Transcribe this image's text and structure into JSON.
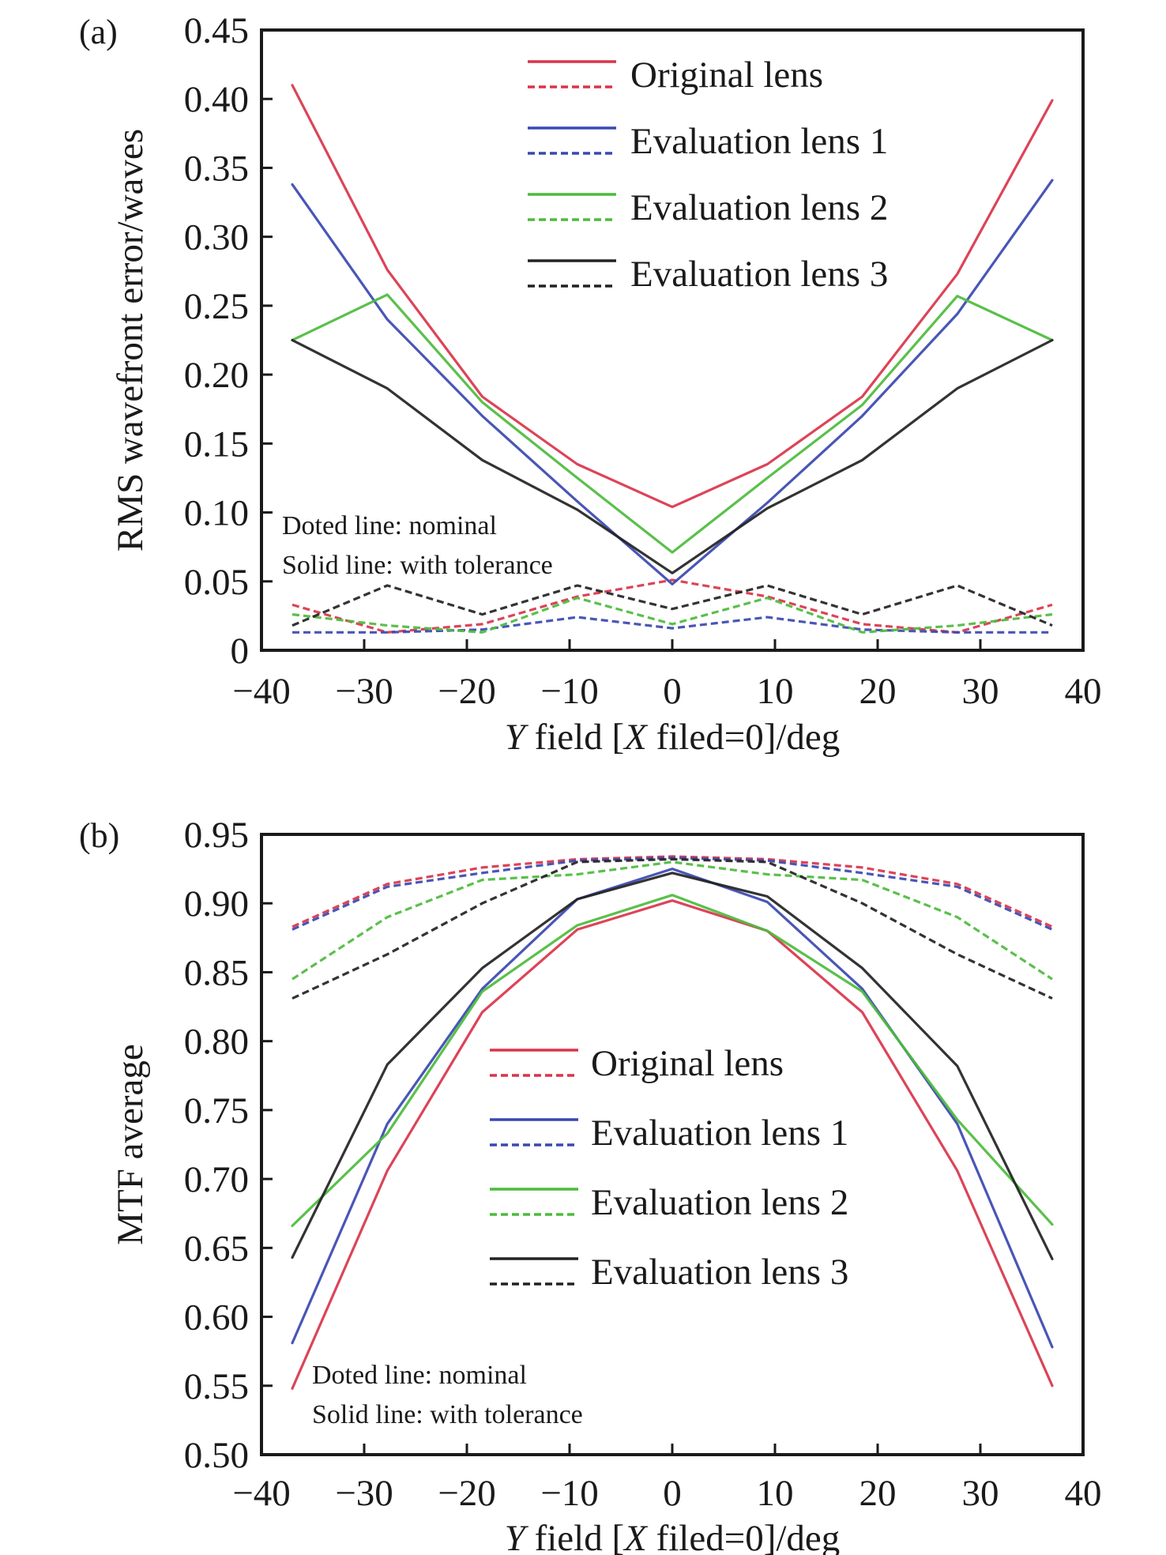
{
  "chart_data": [
    {
      "type": "line",
      "panel_label": "(a)",
      "xlabel_parts": [
        "Y",
        " field [",
        "X",
        " filed=0]/deg"
      ],
      "ylabel": "RMS wavefront error/waves",
      "xlim": [
        -40,
        40
      ],
      "ylim": [
        0,
        0.45
      ],
      "xticks": [
        -40,
        -30,
        -20,
        -10,
        0,
        10,
        20,
        30,
        40
      ],
      "xtick_labels": [
        "−40",
        "−30",
        "−20",
        "−10",
        "0",
        "10",
        "20",
        "30",
        "40"
      ],
      "yticks": [
        0,
        0.05,
        0.1,
        0.15,
        0.2,
        0.25,
        0.3,
        0.35,
        0.4,
        0.45
      ],
      "ytick_labels": [
        "0",
        "0.05",
        "0.10",
        "0.15",
        "0.20",
        "0.25",
        "0.30",
        "0.35",
        "0.40",
        "0.45"
      ],
      "grid": false,
      "legend_position": "top-center",
      "notes": [
        "Doted line: nominal",
        "Solid line: with tolerance"
      ],
      "x": [
        -37,
        -27.75,
        -18.5,
        -9.25,
        0,
        9.25,
        18.5,
        27.75,
        37
      ],
      "series": [
        {
          "name": "Original lens",
          "style": "solid",
          "color": "#d9344a",
          "values": [
            0.41,
            0.276,
            0.184,
            0.135,
            0.104,
            0.135,
            0.184,
            0.273,
            0.399
          ]
        },
        {
          "name": "Original lens",
          "style": "dashed",
          "color": "#d9344a",
          "values": [
            0.033,
            0.013,
            0.019,
            0.039,
            0.051,
            0.039,
            0.019,
            0.013,
            0.033
          ]
        },
        {
          "name": "Evaluation lens 1",
          "style": "solid",
          "color": "#3a48b0",
          "values": [
            0.338,
            0.24,
            0.17,
            0.108,
            0.048,
            0.107,
            0.17,
            0.244,
            0.341
          ]
        },
        {
          "name": "Evaluation lens 1",
          "style": "dashed",
          "color": "#3a48b0",
          "values": [
            0.013,
            0.013,
            0.015,
            0.024,
            0.016,
            0.024,
            0.015,
            0.013,
            0.013
          ]
        },
        {
          "name": "Evaluation lens 2",
          "style": "solid",
          "color": "#4cbb3c",
          "values": [
            0.225,
            0.258,
            0.18,
            0.125,
            0.071,
            0.125,
            0.178,
            0.257,
            0.225
          ]
        },
        {
          "name": "Evaluation lens 2",
          "style": "dashed",
          "color": "#4cbb3c",
          "values": [
            0.026,
            0.018,
            0.013,
            0.038,
            0.019,
            0.038,
            0.013,
            0.018,
            0.026
          ]
        },
        {
          "name": "Evaluation lens 3",
          "style": "solid",
          "color": "#222222",
          "values": [
            0.225,
            0.19,
            0.138,
            0.102,
            0.056,
            0.103,
            0.138,
            0.19,
            0.225
          ]
        },
        {
          "name": "Evaluation lens 3",
          "style": "dashed",
          "color": "#222222",
          "values": [
            0.018,
            0.047,
            0.026,
            0.047,
            0.03,
            0.047,
            0.026,
            0.047,
            0.018
          ]
        }
      ],
      "legend": [
        "Original lens",
        "Evaluation lens 1",
        "Evaluation lens 2",
        "Evaluation lens 3"
      ]
    },
    {
      "type": "line",
      "panel_label": "(b)",
      "xlabel_parts": [
        "Y",
        " field [",
        "X",
        " filed=0]/deg"
      ],
      "ylabel": "MTF average",
      "xlim": [
        -40,
        40
      ],
      "ylim": [
        0.5,
        0.95
      ],
      "xticks": [
        -40,
        -30,
        -20,
        -10,
        0,
        10,
        20,
        30,
        40
      ],
      "xtick_labels": [
        "−40",
        "−30",
        "−20",
        "−10",
        "0",
        "10",
        "20",
        "30",
        "40"
      ],
      "yticks": [
        0.5,
        0.55,
        0.6,
        0.65,
        0.7,
        0.75,
        0.8,
        0.85,
        0.9,
        0.95
      ],
      "ytick_labels": [
        "0.50",
        "0.55",
        "0.60",
        "0.65",
        "0.70",
        "0.75",
        "0.80",
        "0.85",
        "0.90",
        "0.95"
      ],
      "grid": false,
      "legend_position": "center",
      "notes": [
        "Doted line: nominal",
        "Solid line: with tolerance"
      ],
      "x": [
        -37,
        -27.75,
        -18.5,
        -9.25,
        0,
        9.25,
        18.5,
        27.75,
        37
      ],
      "series": [
        {
          "name": "Original lens",
          "style": "solid",
          "color": "#d9344a",
          "values": [
            0.548,
            0.706,
            0.821,
            0.881,
            0.902,
            0.88,
            0.821,
            0.706,
            0.55
          ]
        },
        {
          "name": "Original lens",
          "style": "dashed",
          "color": "#d9344a",
          "values": [
            0.883,
            0.914,
            0.926,
            0.932,
            0.934,
            0.932,
            0.926,
            0.914,
            0.883
          ]
        },
        {
          "name": "Evaluation lens 1",
          "style": "solid",
          "color": "#3a48b0",
          "values": [
            0.581,
            0.74,
            0.838,
            0.903,
            0.925,
            0.901,
            0.838,
            0.74,
            0.578
          ]
        },
        {
          "name": "Evaluation lens 1",
          "style": "dashed",
          "color": "#3a48b0",
          "values": [
            0.881,
            0.912,
            0.922,
            0.931,
            0.933,
            0.931,
            0.922,
            0.912,
            0.881
          ]
        },
        {
          "name": "Evaluation lens 2",
          "style": "solid",
          "color": "#4cbb3c",
          "values": [
            0.666,
            0.733,
            0.836,
            0.884,
            0.906,
            0.88,
            0.836,
            0.743,
            0.667
          ]
        },
        {
          "name": "Evaluation lens 2",
          "style": "dashed",
          "color": "#4cbb3c",
          "values": [
            0.845,
            0.89,
            0.917,
            0.921,
            0.93,
            0.921,
            0.917,
            0.89,
            0.845
          ]
        },
        {
          "name": "Evaluation lens 3",
          "style": "solid",
          "color": "#222222",
          "values": [
            0.643,
            0.783,
            0.853,
            0.903,
            0.922,
            0.905,
            0.853,
            0.782,
            0.642
          ]
        },
        {
          "name": "Evaluation lens 3",
          "style": "dashed",
          "color": "#222222",
          "values": [
            0.831,
            0.863,
            0.9,
            0.93,
            0.932,
            0.93,
            0.9,
            0.863,
            0.831
          ]
        }
      ],
      "legend": [
        "Original lens",
        "Evaluation lens 1",
        "Evaluation lens 2",
        "Evaluation lens 3"
      ]
    }
  ]
}
